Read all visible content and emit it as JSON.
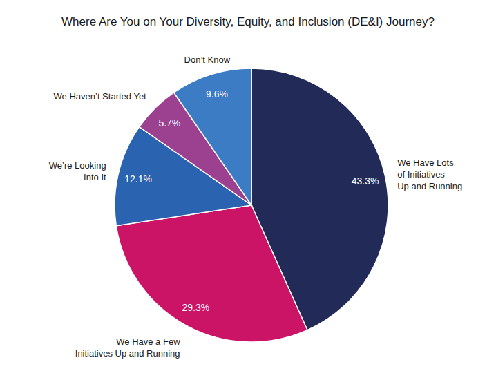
{
  "chart_data": {
    "type": "pie",
    "title": "Where Are You on Your Diversity, Equity, and Inclusion (DE&I) Journey?",
    "categories": [
      "We Have Lots of Initiatives Up and Running",
      "We Have a Few Initiatives Up and Running",
      "We’re Looking Into It",
      "We Haven’t Started Yet",
      "Don’t Know"
    ],
    "values": [
      43.3,
      29.3,
      12.1,
      5.7,
      9.6
    ],
    "value_labels": [
      "43.3%",
      "29.3%",
      "12.1%",
      "5.7%",
      "9.6%"
    ],
    "colors": [
      "#222b58",
      "#cc1466",
      "#2a64b0",
      "#9c4190",
      "#3b7cc4"
    ],
    "data_labels": true
  }
}
